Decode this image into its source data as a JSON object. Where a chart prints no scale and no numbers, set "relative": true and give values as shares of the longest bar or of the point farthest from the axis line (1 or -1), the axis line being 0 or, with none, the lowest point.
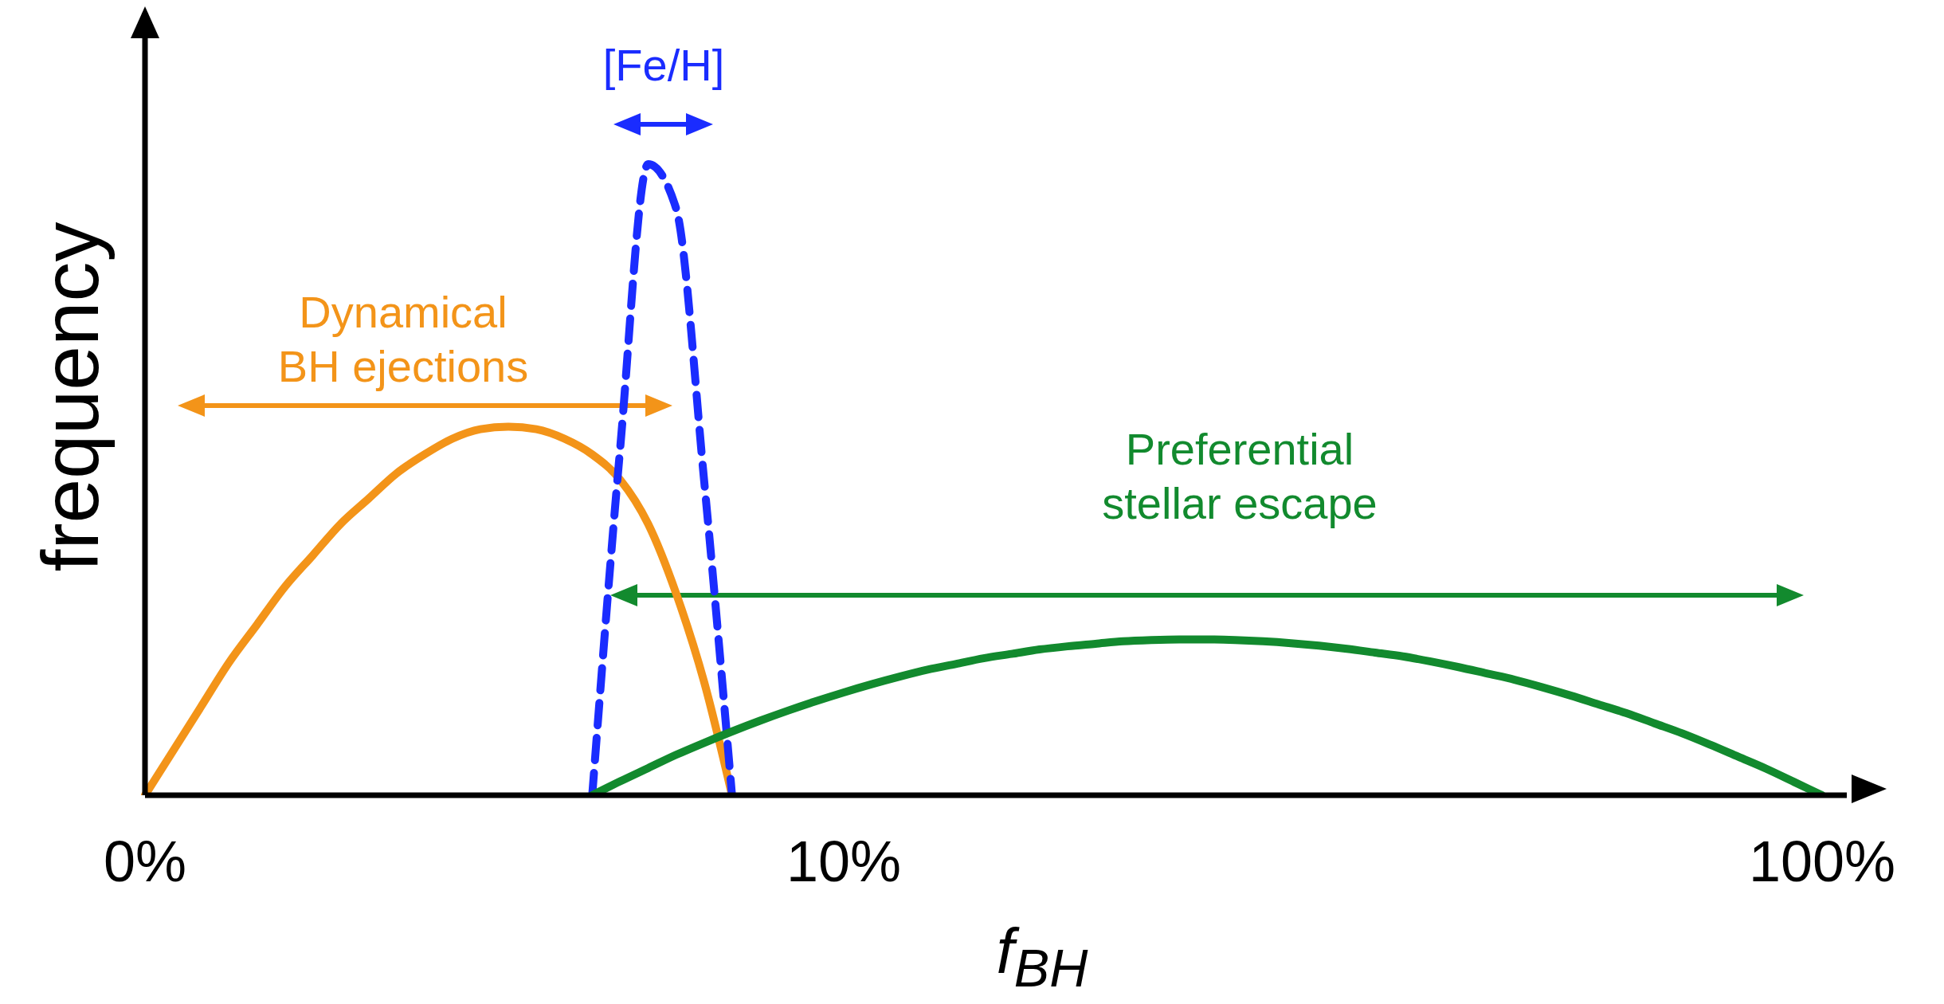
{
  "chart_data": {
    "type": "line",
    "relative": true,
    "xlabel": "f$_{BH}$",
    "ylabel": "frequency",
    "categories": [
      "0%",
      null,
      null,
      null,
      null,
      null,
      null,
      null,
      null,
      null,
      null,
      null,
      null,
      null,
      null,
      null,
      null,
      null,
      null,
      null,
      null,
      null,
      null,
      null,
      null,
      "10%",
      null,
      null,
      null,
      null,
      null,
      null,
      null,
      null,
      null,
      null,
      null,
      null,
      null,
      null,
      null,
      null,
      null,
      null,
      null,
      null,
      null,
      null,
      null,
      null,
      null,
      null,
      null,
      null,
      null,
      null,
      null,
      null,
      null,
      null,
      "100%"
    ],
    "series": [
      {
        "color": "#f39419",
        "line_style": "solid",
        "values": [
          0,
          0.07,
          0.14,
          0.21,
          0.27,
          0.33,
          0.38,
          0.43,
          0.47,
          0.51,
          0.54,
          0.565,
          0.58,
          0.584,
          0.58,
          0.565,
          0.54,
          0.5,
          0.43,
          0.32,
          0.18,
          0,
          null,
          null,
          null,
          null,
          null,
          null,
          null,
          null,
          null,
          null,
          null,
          null,
          null,
          null,
          null,
          null,
          null,
          null,
          null,
          null,
          null,
          null,
          null,
          null,
          null,
          null,
          null,
          null,
          null,
          null,
          null,
          null,
          null,
          null,
          null,
          null,
          null,
          null,
          null
        ]
      },
      {
        "color": "#1a2cff",
        "line_style": "dashed",
        "values": [
          null,
          null,
          null,
          null,
          null,
          null,
          null,
          null,
          null,
          null,
          null,
          null,
          null,
          null,
          null,
          null,
          0,
          0.55,
          1,
          0.93,
          0.5,
          0,
          null,
          null,
          null,
          null,
          null,
          null,
          null,
          null,
          null,
          null,
          null,
          null,
          null,
          null,
          null,
          null,
          null,
          null,
          null,
          null,
          null,
          null,
          null,
          null,
          null,
          null,
          null,
          null,
          null,
          null,
          null,
          null,
          null,
          null,
          null,
          null,
          null,
          null,
          null
        ]
      },
      {
        "color": "#128a2e",
        "line_style": "solid",
        "values": [
          null,
          null,
          null,
          null,
          null,
          null,
          null,
          null,
          null,
          null,
          null,
          null,
          null,
          null,
          null,
          null,
          0,
          0.022,
          0.043,
          0.064,
          0.083,
          0.101,
          0.118,
          0.134,
          0.149,
          0.163,
          0.176,
          0.188,
          0.199,
          0.208,
          0.217,
          0.224,
          0.231,
          0.236,
          0.24,
          0.244,
          0.246,
          0.247,
          0.247,
          0.246,
          0.244,
          0.241,
          0.237,
          0.232,
          0.226,
          0.22,
          0.212,
          0.203,
          0.193,
          0.183,
          0.171,
          0.158,
          0.144,
          0.13,
          0.114,
          0.098,
          0.08,
          0.061,
          0.042,
          0.021,
          0
        ]
      }
    ],
    "annotations": [
      "Dynamical\nBH ejections",
      "[Fe/H]",
      "Preferential\nstellar escape"
    ],
    "legend": false,
    "grid": false
  }
}
